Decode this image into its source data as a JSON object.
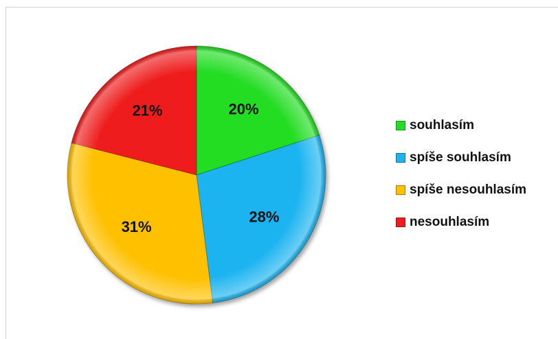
{
  "chart_data": {
    "type": "pie",
    "title": "",
    "categories": [
      "souhlasím",
      "spíše souhlasím",
      "spíše nesouhlasím",
      "nesouhlasím"
    ],
    "values": [
      20,
      28,
      31,
      21
    ],
    "labels": [
      "20%",
      "28%",
      "31%",
      "21%"
    ],
    "colors": [
      "#22dd22",
      "#1fb4f0",
      "#ffc000",
      "#ee1c1c"
    ],
    "legend": "right",
    "start_angle": "12 o'clock",
    "direction": "clockwise"
  }
}
